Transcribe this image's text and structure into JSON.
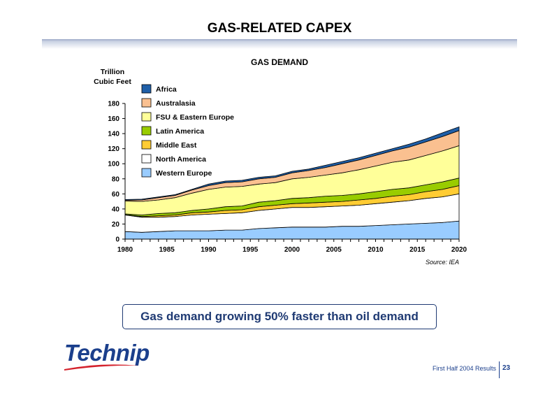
{
  "page": {
    "title": "GAS-RELATED CAPEX",
    "callout": "Gas demand growing 50% faster than oil demand",
    "logo_text": "Technip",
    "footer_text": "First Half 2004 Results",
    "page_number": "23"
  },
  "colors": {
    "accent": "#1f3a73",
    "logo": "#1b3f8c",
    "logo_swoosh": "#d4212b"
  },
  "chart_data": {
    "type": "area",
    "stacked": true,
    "title": "GAS DEMAND",
    "ylabel_lines": [
      "Trillion",
      "Cubic Feet"
    ],
    "source": "Source: IEA",
    "xlim": [
      1980,
      2020
    ],
    "ylim": [
      0,
      180
    ],
    "xticks": [
      1980,
      1985,
      1990,
      1995,
      2000,
      2005,
      2010,
      2015,
      2020
    ],
    "yticks": [
      0,
      20,
      40,
      60,
      80,
      100,
      120,
      140,
      160,
      180
    ],
    "legend_placement": "top-left",
    "x": [
      1980,
      1982,
      1984,
      1986,
      1988,
      1990,
      1992,
      1994,
      1996,
      1998,
      2000,
      2002,
      2004,
      2006,
      2008,
      2010,
      2012,
      2014,
      2016,
      2018,
      2020
    ],
    "series": [
      {
        "name": "Western Europe",
        "color": "#99ccff",
        "values": [
          10,
          9,
          10,
          11,
          11,
          11,
          12,
          12,
          14,
          15,
          16,
          16,
          16,
          17,
          17,
          18,
          19,
          20,
          21,
          22,
          24
        ]
      },
      {
        "name": "North America",
        "color": "#ffffff",
        "values": [
          22,
          20,
          19,
          19,
          21,
          22,
          22,
          23,
          24,
          25,
          26,
          26,
          27,
          27,
          28,
          29,
          30,
          31,
          33,
          34,
          36
        ]
      },
      {
        "name": "Middle East",
        "color": "#ffcc33",
        "values": [
          0.5,
          1,
          2,
          2,
          3,
          3,
          4,
          4,
          5,
          5,
          5,
          6,
          6,
          6,
          7,
          7,
          8,
          8,
          9,
          10,
          11
        ]
      },
      {
        "name": "Latin America",
        "color": "#99cc00",
        "values": [
          1,
          2,
          3,
          3,
          3,
          4,
          5,
          5,
          6,
          6,
          7,
          7,
          8,
          8,
          8,
          9,
          9,
          9,
          9,
          10,
          10
        ]
      },
      {
        "name": "FSU & Eastern Europe",
        "color": "#ffff99",
        "values": [
          17,
          18,
          18,
          20,
          23,
          26,
          26,
          26,
          24,
          24,
          26,
          27,
          28,
          30,
          32,
          34,
          36,
          37,
          39,
          41,
          43
        ]
      },
      {
        "name": "Australasia",
        "color": "#fac090",
        "values": [
          1,
          2,
          3,
          3,
          4,
          5,
          6,
          6,
          7,
          7,
          8,
          9,
          10,
          12,
          13,
          14,
          15,
          17,
          18,
          19,
          20
        ]
      },
      {
        "name": "Africa",
        "color": "#1f5fa8",
        "values": [
          1,
          1,
          1,
          1,
          1,
          2,
          2,
          2,
          2,
          2,
          2,
          2,
          3,
          3,
          3,
          3,
          3,
          4,
          4,
          5,
          5
        ]
      }
    ]
  }
}
